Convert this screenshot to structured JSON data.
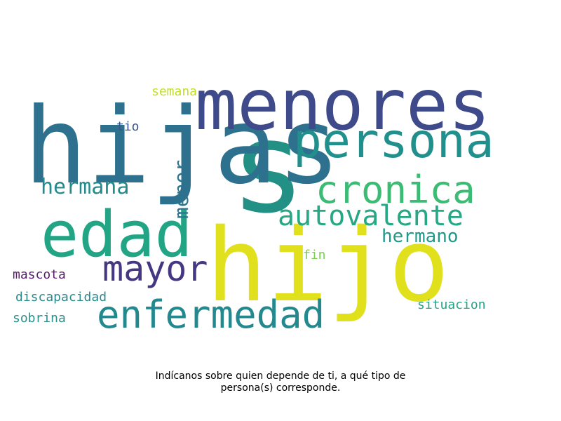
{
  "words": [
    {
      "text": "s",
      "color": "#229085"
    },
    {
      "text": "hijas",
      "color": "#2d718e"
    },
    {
      "text": "menores",
      "color": "#3e4a89"
    },
    {
      "text": "hijo",
      "color": "#e0e01c"
    },
    {
      "text": "persona",
      "color": "#21908c"
    },
    {
      "text": "edad",
      "color": "#22a585"
    },
    {
      "text": "cronica",
      "color": "#3cbb75"
    },
    {
      "text": "autovalente",
      "color": "#26a884"
    },
    {
      "text": "mayor",
      "color": "#453781"
    },
    {
      "text": "enfermedad",
      "color": "#23898e"
    },
    {
      "text": "hermana",
      "color": "#238a8d"
    },
    {
      "text": "menor",
      "color": "#2c738e"
    },
    {
      "text": "hermano",
      "color": "#1f998a"
    },
    {
      "text": "semana",
      "color": "#c2df23"
    },
    {
      "text": "tio",
      "color": "#3a538b"
    },
    {
      "text": "fin",
      "color": "#7ad151"
    },
    {
      "text": "mascota",
      "color": "#5a1c6e"
    },
    {
      "text": "discapacidad",
      "color": "#2c8a8d"
    },
    {
      "text": "sobrina",
      "color": "#2e8f8d"
    },
    {
      "text": "situacion",
      "color": "#24a486"
    }
  ],
  "caption": {
    "line1": "Indícanos sobre quien depende de ti, a qué tipo de",
    "line2": "persona(s) corresponde."
  }
}
